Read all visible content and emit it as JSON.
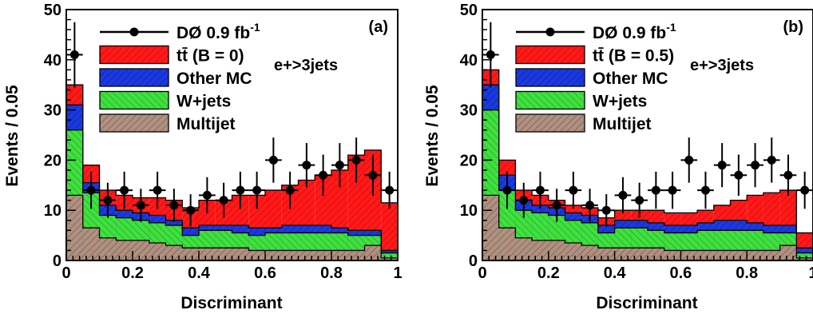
{
  "colors": {
    "ttbar": "#ff0000",
    "other_mc": "#1030d0",
    "wjets": "#30dd30",
    "multijet": "#a08070",
    "data": "#000000"
  },
  "chart_data": [
    {
      "type": "bar",
      "panel_label": "(a)",
      "annotation": "e+>3jets",
      "xlabel": "Discriminant",
      "ylabel": "Events / 0.05",
      "xlim": [
        0,
        1
      ],
      "ylim": [
        0,
        50
      ],
      "xticks": [
        "0",
        "0.2",
        "0.4",
        "0.6",
        "0.8",
        "1"
      ],
      "yticks": [
        "0",
        "10",
        "20",
        "30",
        "40",
        "50"
      ],
      "bin_edges": [
        0,
        0.05,
        0.1,
        0.15,
        0.2,
        0.25,
        0.3,
        0.35,
        0.4,
        0.45,
        0.5,
        0.55,
        0.6,
        0.65,
        0.7,
        0.75,
        0.8,
        0.85,
        0.9,
        0.95,
        1.0
      ],
      "legend": {
        "data": {
          "label": "DØ 0.9 fb",
          "sup": "-1"
        },
        "ttbar": "tt̄ (B = 0)",
        "other_mc": "Other MC",
        "wjets": "W+jets",
        "multijet": "Multijet"
      },
      "stack_cumulative": {
        "multijet": [
          13,
          6.5,
          4.5,
          4,
          4,
          3.5,
          3,
          2.5,
          2.5,
          2.5,
          2.5,
          2,
          2,
          2,
          2,
          2,
          2,
          2,
          3,
          0.5
        ],
        "wjets": [
          26,
          13.5,
          9,
          8.5,
          8,
          7.5,
          7,
          5,
          6,
          6,
          5.5,
          5,
          5.5,
          5.5,
          5.5,
          5.5,
          5.5,
          5,
          5,
          1.5
        ],
        "other_mc": [
          31,
          15.5,
          11,
          10,
          9.5,
          9,
          8,
          6.5,
          7,
          7,
          7,
          6.5,
          6.5,
          7,
          7,
          7,
          6.5,
          6,
          6,
          2
        ],
        "ttbar": [
          35,
          19,
          14,
          13,
          12.5,
          12.5,
          12,
          10.5,
          12,
          12,
          13,
          13,
          14,
          15,
          16,
          17,
          18,
          21,
          22,
          11.5
        ]
      },
      "data_points": {
        "y": [
          41,
          14,
          12,
          14,
          11,
          14,
          11,
          10,
          13,
          12,
          14,
          14,
          20,
          14,
          19,
          17,
          19,
          20,
          17,
          14
        ],
        "yerr": [
          6.5,
          3.7,
          3.5,
          3.7,
          3.3,
          3.7,
          3.3,
          3.2,
          3.6,
          3.5,
          3.7,
          3.7,
          4.5,
          3.7,
          4.4,
          4.1,
          4.4,
          4.5,
          4.1,
          3.7
        ]
      }
    },
    {
      "type": "bar",
      "panel_label": "(b)",
      "annotation": "e+>3jets",
      "xlabel": "Discriminant",
      "ylabel": "Events / 0.05",
      "xlim": [
        0,
        1
      ],
      "ylim": [
        0,
        50
      ],
      "xticks": [
        "0",
        "0.2",
        "0.4",
        "0.6",
        "0.8",
        "1"
      ],
      "yticks": [
        "0",
        "10",
        "20",
        "30",
        "40",
        "50"
      ],
      "bin_edges": [
        0,
        0.05,
        0.1,
        0.15,
        0.2,
        0.25,
        0.3,
        0.35,
        0.4,
        0.45,
        0.5,
        0.55,
        0.6,
        0.65,
        0.7,
        0.75,
        0.8,
        0.85,
        0.9,
        0.95,
        1.0
      ],
      "legend": {
        "data": {
          "label": "DØ 0.9 fb",
          "sup": "-1"
        },
        "ttbar": "tt̄ (B = 0.5)",
        "other_mc": "Other MC",
        "wjets": "W+jets",
        "multijet": "Multijet"
      },
      "stack_cumulative": {
        "multijet": [
          13,
          6.5,
          4.5,
          4,
          4,
          3.5,
          3,
          2.5,
          2.5,
          2.5,
          2.5,
          2,
          2,
          2,
          2,
          2,
          2,
          2,
          3,
          0.5
        ],
        "wjets": [
          30,
          14,
          10,
          9.5,
          9,
          8,
          7.5,
          5.5,
          6.5,
          6.5,
          6,
          5.5,
          5.5,
          6,
          6,
          6,
          6,
          5.5,
          5.5,
          1.5
        ],
        "other_mc": [
          35,
          17,
          12,
          11,
          10.5,
          9.5,
          9,
          7,
          8,
          8,
          7.5,
          7,
          7,
          7.5,
          8,
          8,
          7.5,
          7,
          7,
          2.5
        ],
        "ttbar": [
          38,
          20,
          14,
          13,
          12,
          11,
          10.5,
          8.5,
          10,
          10,
          10,
          9.5,
          9.5,
          10,
          11,
          12,
          13,
          13.5,
          14,
          5.5
        ]
      },
      "data_points": {
        "y": [
          41,
          14,
          12,
          14,
          11,
          14,
          11,
          10,
          13,
          12,
          14,
          14,
          20,
          14,
          19,
          17,
          19,
          20,
          17,
          14
        ],
        "yerr": [
          6.5,
          3.7,
          3.5,
          3.7,
          3.3,
          3.7,
          3.3,
          3.2,
          3.6,
          3.5,
          3.7,
          3.7,
          4.5,
          3.7,
          4.4,
          4.1,
          4.4,
          4.5,
          4.1,
          3.7
        ]
      }
    }
  ]
}
